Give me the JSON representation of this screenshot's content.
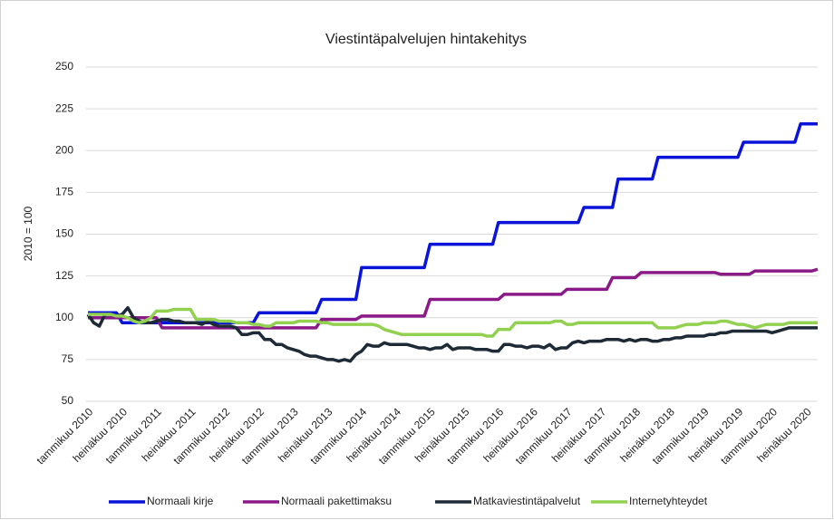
{
  "chart_data": {
    "type": "line",
    "title": "Viestintäpalvelujen hintakehitys",
    "y_label": "2010 = 100",
    "categories": [
      "tammikuu 2010",
      null,
      null,
      null,
      null,
      null,
      "heinäkuu 2010",
      null,
      null,
      null,
      null,
      null,
      "tammikuu 2011",
      null,
      null,
      null,
      null,
      null,
      "heinäkuu 2011",
      null,
      null,
      null,
      null,
      null,
      "tammikuu 2012",
      null,
      null,
      null,
      null,
      null,
      "heinäkuu 2012",
      null,
      null,
      null,
      null,
      null,
      "tammikuu 2013",
      null,
      null,
      null,
      null,
      null,
      "heinäkuu 2013",
      null,
      null,
      null,
      null,
      null,
      "tammikuu 2014",
      null,
      null,
      null,
      null,
      null,
      "heinäkuu 2014",
      null,
      null,
      null,
      null,
      null,
      "tammikuu 2015",
      null,
      null,
      null,
      null,
      null,
      "heinäkuu 2015",
      null,
      null,
      null,
      null,
      null,
      "tammikuu 2016",
      null,
      null,
      null,
      null,
      null,
      "heinäkuu 2016",
      null,
      null,
      null,
      null,
      null,
      "tammikuu 2017",
      null,
      null,
      null,
      null,
      null,
      "heinäkuu 2017",
      null,
      null,
      null,
      null,
      null,
      "tammikuu 2018",
      null,
      null,
      null,
      null,
      null,
      "heinäkuu 2018",
      null,
      null,
      null,
      null,
      null,
      "tammikuu 2019",
      null,
      null,
      null,
      null,
      null,
      "heinäkuu 2019",
      null,
      null,
      null,
      null,
      null,
      "tammikuu 2020",
      null,
      null,
      null,
      null,
      null,
      "heinäkuu 2020",
      null,
      null
    ],
    "series": [
      {
        "name": "Normaali kirje",
        "color": "#0a14d8",
        "values": [
          103,
          103,
          103,
          103,
          103,
          103,
          97,
          97,
          97,
          97,
          97,
          97,
          97,
          97,
          97,
          97,
          97,
          97,
          97,
          97,
          97,
          97,
          97,
          97,
          97,
          97,
          97,
          97,
          97,
          97,
          103,
          103,
          103,
          103,
          103,
          103,
          103,
          103,
          103,
          103,
          103,
          111,
          111,
          111,
          111,
          111,
          111,
          111,
          130,
          130,
          130,
          130,
          130,
          130,
          130,
          130,
          130,
          130,
          130,
          130,
          144,
          144,
          144,
          144,
          144,
          144,
          144,
          144,
          144,
          144,
          144,
          144,
          157,
          157,
          157,
          157,
          157,
          157,
          157,
          157,
          157,
          157,
          157,
          157,
          157,
          157,
          157,
          166,
          166,
          166,
          166,
          166,
          166,
          183,
          183,
          183,
          183,
          183,
          183,
          183,
          196,
          196,
          196,
          196,
          196,
          196,
          196,
          196,
          196,
          196,
          196,
          196,
          196,
          196,
          196,
          205,
          205,
          205,
          205,
          205,
          205,
          205,
          205,
          205,
          205,
          216,
          216,
          216,
          216
        ]
      },
      {
        "name": "Normaali pakettimaksu",
        "color": "#8b1a89",
        "values": [
          100,
          100,
          100,
          100,
          100,
          100,
          100,
          100,
          100,
          100,
          100,
          100,
          100,
          94,
          94,
          94,
          94,
          94,
          94,
          94,
          94,
          94,
          94,
          94,
          94,
          94,
          94,
          94,
          94,
          94,
          94,
          94,
          94,
          94,
          94,
          94,
          94,
          94,
          94,
          94,
          94,
          99,
          99,
          99,
          99,
          99,
          99,
          99,
          101,
          101,
          101,
          101,
          101,
          101,
          101,
          101,
          101,
          101,
          101,
          101,
          111,
          111,
          111,
          111,
          111,
          111,
          111,
          111,
          111,
          111,
          111,
          111,
          111,
          114,
          114,
          114,
          114,
          114,
          114,
          114,
          114,
          114,
          114,
          114,
          117,
          117,
          117,
          117,
          117,
          117,
          117,
          117,
          124,
          124,
          124,
          124,
          124,
          127,
          127,
          127,
          127,
          127,
          127,
          127,
          127,
          127,
          127,
          127,
          127,
          127,
          127,
          126,
          126,
          126,
          126,
          126,
          126,
          128,
          128,
          128,
          128,
          128,
          128,
          128,
          128,
          128,
          128,
          128,
          129
        ]
      },
      {
        "name": "Matkaviestintäpalvelut",
        "color": "#1e2a36",
        "values": [
          102,
          97,
          95,
          102,
          102,
          101,
          102,
          106,
          100,
          98,
          97,
          97,
          98,
          99,
          99,
          98,
          98,
          97,
          97,
          97,
          96,
          98,
          96,
          95,
          95,
          95,
          94,
          90,
          90,
          91,
          91,
          87,
          87,
          84,
          84,
          82,
          81,
          80,
          78,
          77,
          77,
          76,
          75,
          75,
          74,
          75,
          74,
          78,
          80,
          84,
          83,
          83,
          85,
          84,
          84,
          84,
          84,
          83,
          82,
          82,
          81,
          82,
          82,
          84,
          81,
          82,
          82,
          82,
          81,
          81,
          81,
          80,
          80,
          84,
          84,
          83,
          83,
          82,
          83,
          83,
          82,
          84,
          81,
          82,
          82,
          85,
          86,
          85,
          86,
          86,
          86,
          87,
          87,
          87,
          86,
          87,
          86,
          87,
          87,
          86,
          86,
          87,
          87,
          88,
          88,
          89,
          89,
          89,
          89,
          90,
          90,
          91,
          91,
          92,
          92,
          92,
          92,
          92,
          92,
          92,
          91,
          92,
          93,
          94,
          94,
          94,
          94,
          94,
          94
        ]
      },
      {
        "name": "Internetyhteydet",
        "color": "#92d050",
        "values": [
          102,
          102,
          102,
          102,
          102,
          101,
          101,
          100,
          98,
          97,
          98,
          100,
          104,
          104,
          104,
          105,
          105,
          105,
          105,
          99,
          99,
          99,
          99,
          98,
          98,
          98,
          97,
          97,
          97,
          96,
          96,
          95,
          95,
          97,
          97,
          97,
          97,
          98,
          98,
          98,
          98,
          97,
          97,
          96,
          96,
          96,
          96,
          96,
          96,
          96,
          96,
          95,
          93,
          92,
          91,
          90,
          90,
          90,
          90,
          90,
          90,
          90,
          90,
          90,
          90,
          90,
          90,
          90,
          90,
          90,
          89,
          89,
          93,
          93,
          93,
          97,
          97,
          97,
          97,
          97,
          97,
          97,
          98,
          98,
          96,
          96,
          97,
          97,
          97,
          97,
          97,
          97,
          97,
          97,
          97,
          97,
          97,
          97,
          97,
          97,
          94,
          94,
          94,
          94,
          95,
          96,
          96,
          96,
          97,
          97,
          97,
          98,
          98,
          97,
          96,
          96,
          95,
          94,
          95,
          96,
          96,
          96,
          96,
          97,
          97,
          97,
          97,
          97,
          97
        ]
      }
    ],
    "ylim": [
      50,
      250
    ],
    "yticks": [
      50,
      75,
      100,
      125,
      150,
      175,
      200,
      225,
      250
    ],
    "grid": true,
    "legend": "bottom"
  }
}
